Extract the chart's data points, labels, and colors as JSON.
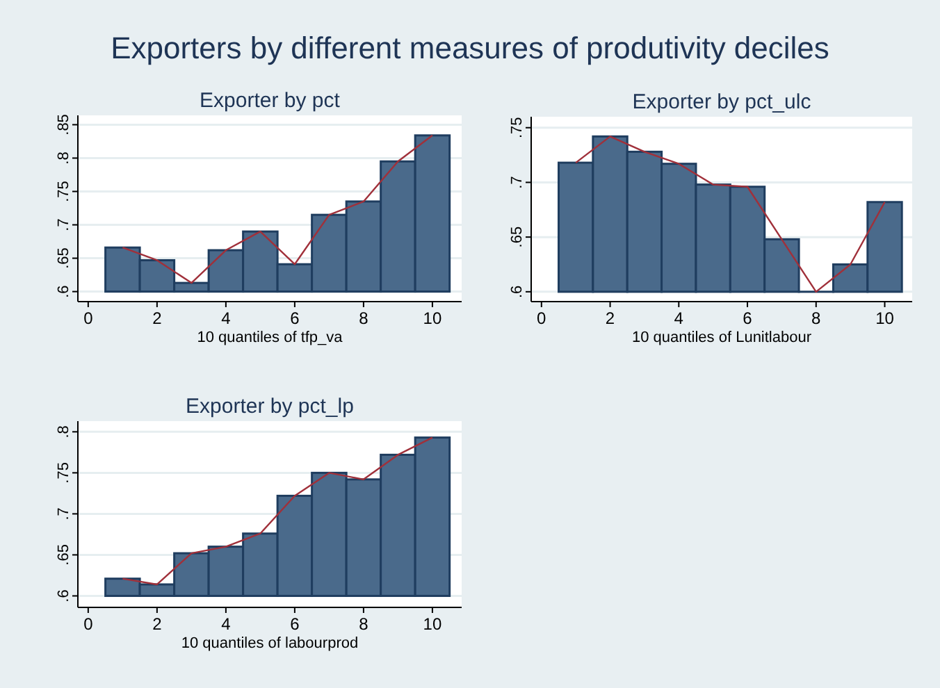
{
  "chart_data": [
    {
      "type": "bar",
      "title": "Exporter by pct",
      "xlabel": "10 quantiles of tfp_va",
      "annotations": [
        "Exporters by different measures of produtivity deciles"
      ],
      "x": [
        1,
        2,
        3,
        4,
        5,
        6,
        7,
        8,
        9,
        10
      ],
      "xlim": [
        -0.3,
        10.85
      ],
      "xticks": [
        0,
        2,
        4,
        6,
        8,
        10
      ],
      "ylim": [
        0.585,
        0.864
      ],
      "yticks": [
        {
          "value": 0.6,
          "label": ".6"
        },
        {
          "value": 0.65,
          "label": ".65"
        },
        {
          "value": 0.7,
          "label": ".7"
        },
        {
          "value": 0.75,
          "label": ".75"
        },
        {
          "value": 0.8,
          "label": ".8"
        },
        {
          "value": 0.85,
          "label": ".85"
        }
      ],
      "grid": "y",
      "series": [
        {
          "color": "#4a6a8b",
          "base": [
            0.6,
            0.6,
            0.6,
            0.6,
            0.6,
            0.6,
            0.6,
            0.6,
            0.6,
            0.6
          ],
          "values": [
            0.066,
            0.047,
            0.013,
            0.062,
            0.09,
            0.041,
            0.115,
            0.135,
            0.195,
            0.234
          ]
        },
        {
          "type": "line",
          "color": "#a0303a",
          "marker": "none",
          "values": [
            0.666,
            0.647,
            0.613,
            0.662,
            0.69,
            0.641,
            0.715,
            0.735,
            0.795,
            0.834
          ]
        }
      ]
    },
    {
      "type": "bar",
      "title": "Exporter by pct_ulc",
      "xlabel": "10 quantiles of Lunitlabour",
      "x": [
        1,
        2,
        3,
        4,
        5,
        6,
        7,
        8,
        9,
        10
      ],
      "xlim": [
        -0.3,
        10.8
      ],
      "xticks": [
        0,
        2,
        4,
        6,
        8,
        10
      ],
      "ylim": [
        0.591,
        0.76
      ],
      "yticks": [
        {
          "value": 0.6,
          "label": ".6"
        },
        {
          "value": 0.65,
          "label": ".65"
        },
        {
          "value": 0.7,
          "label": ".7"
        },
        {
          "value": 0.75,
          "label": ".75"
        }
      ],
      "grid": "y",
      "series": [
        {
          "color": "#4a6a8b",
          "base": [
            0.6,
            0.6,
            0.6,
            0.6,
            0.6,
            0.6,
            0.6,
            0.6,
            0.6,
            0.6
          ],
          "values": [
            0.118,
            0.142,
            0.128,
            0.117,
            0.098,
            0.096,
            0.048,
            0,
            0.025,
            0.082
          ]
        },
        {
          "type": "line",
          "color": "#a0303a",
          "marker": "none",
          "values": [
            0.718,
            0.742,
            0.728,
            0.717,
            0.698,
            0.696,
            0.648,
            0.6,
            0.625,
            0.682
          ]
        }
      ]
    },
    {
      "type": "bar",
      "title": "Exporter by pct_lp",
      "xlabel": "10 quantiles of labourprod",
      "x": [
        1,
        2,
        3,
        4,
        5,
        6,
        7,
        8,
        9,
        10
      ],
      "xlim": [
        -0.3,
        10.85
      ],
      "xticks": [
        0,
        2,
        4,
        6,
        8,
        10
      ],
      "ylim": [
        0.586,
        0.813
      ],
      "yticks": [
        {
          "value": 0.6,
          "label": ".6"
        },
        {
          "value": 0.65,
          "label": ".65"
        },
        {
          "value": 0.7,
          "label": ".7"
        },
        {
          "value": 0.75,
          "label": ".75"
        },
        {
          "value": 0.8,
          "label": ".8"
        }
      ],
      "grid": "y",
      "series": [
        {
          "color": "#4a6a8b",
          "base": [
            0.6,
            0.6,
            0.6,
            0.6,
            0.6,
            0.6,
            0.6,
            0.6,
            0.6,
            0.6
          ],
          "values": [
            0.021,
            0.014,
            0.052,
            0.06,
            0.076,
            0.122,
            0.15,
            0.142,
            0.172,
            0.193
          ]
        },
        {
          "type": "line",
          "color": "#a0303a",
          "marker": "none",
          "values": [
            0.621,
            0.614,
            0.652,
            0.66,
            0.676,
            0.722,
            0.75,
            0.742,
            0.772,
            0.793
          ]
        }
      ]
    }
  ]
}
